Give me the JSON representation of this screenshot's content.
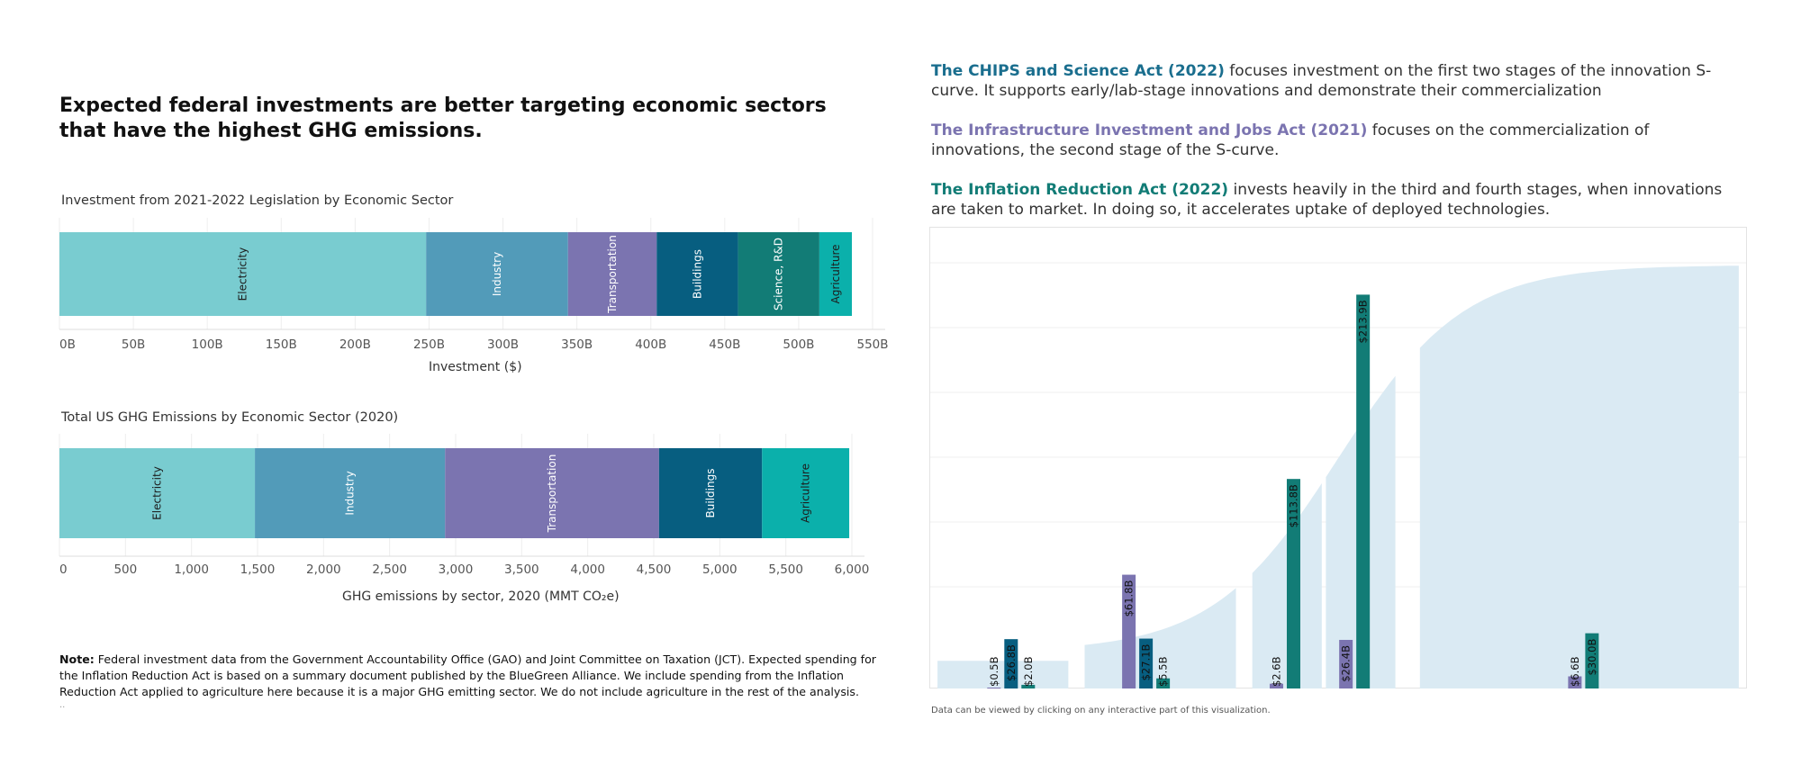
{
  "headline": "Expected federal investments are better targeting economic sectors that have the highest GHG emissions.",
  "investment_chart": {
    "title": "Investment from 2021-2022 Legislation by Economic Sector",
    "xlabel": "Investment ($)"
  },
  "emissions_chart": {
    "title": "Total US GHG Emissions by Economic Sector (2020)",
    "xlabel": "GHG emissions by sector, 2020 (MMT CO₂e)"
  },
  "note": {
    "label": "Note:",
    "text": " Federal investment data from the Government Accountability Office (GAO) and Joint Committee on Taxation (JCT). Expected spending for the Inflation Reduction Act is based on a summary document published by the BlueGreen Alliance. We include spending from the Inflation Reduction Act applied to agriculture here because it is a major GHG emitting sector. We do not include agriculture in the rest of the analysis.",
    "trailing": ".."
  },
  "acts": [
    {
      "name": "The CHIPS and Science Act (2022)",
      "color": "#1a6e8e",
      "text": " focuses investment on the first two stages of the innovation S-curve. It supports early/lab-stage innovations and demonstrate their commercialization"
    },
    {
      "name": "The Infrastructure Investment and Jobs Act (2021)",
      "color": "#7b74b0",
      "text": " focuses on the commercialization of innovations, the second stage of the S-curve."
    },
    {
      "name": "The Inflation Reduction Act (2022)",
      "color": "#127c76",
      "text": " invests heavily in the third and fourth stages, when innovations are taken to market. In doing so, it accelerates uptake of deployed technologies."
    }
  ],
  "footnote": "Data can be viewed by clicking on any interactive part of this visualization.",
  "colors": {
    "electricity": "#79ccd0",
    "industry": "#529bb9",
    "transportation": "#7b74b0",
    "buildings": "#075e80",
    "science": "#127c76",
    "agriculture": "#0bb0ab",
    "chips": "#075e80",
    "iija": "#7b74b0",
    "ira": "#127c76",
    "scurve": "#daeaf3"
  },
  "chart_data": [
    {
      "type": "bar",
      "orientation": "horizontal-stacked",
      "title": "Investment from 2021-2022 Legislation by Economic Sector",
      "xlabel": "Investment ($)",
      "xlim": [
        0,
        550
      ],
      "ticks": [
        "0B",
        "50B",
        "100B",
        "150B",
        "200B",
        "250B",
        "300B",
        "350B",
        "400B",
        "450B",
        "500B",
        "550B"
      ],
      "tick_values": [
        0,
        50,
        100,
        150,
        200,
        250,
        300,
        350,
        400,
        450,
        500,
        550
      ],
      "unit": "B",
      "segments": [
        {
          "name": "Electricity",
          "value": 248,
          "color_key": "electricity",
          "label_color": "#1d1d1d"
        },
        {
          "name": "Industry",
          "value": 96,
          "color_key": "industry",
          "label_color": "#ffffff"
        },
        {
          "name": "Transportation",
          "value": 60,
          "color_key": "transportation",
          "label_color": "#ffffff"
        },
        {
          "name": "Buildings",
          "value": 55,
          "color_key": "buildings",
          "label_color": "#ffffff"
        },
        {
          "name": "Science, R&D",
          "value": 55,
          "color_key": "science",
          "label_color": "#ffffff"
        },
        {
          "name": "Agriculture",
          "value": 22,
          "color_key": "agriculture",
          "label_color": "#1d1d1d"
        }
      ],
      "grid": true
    },
    {
      "type": "bar",
      "orientation": "horizontal-stacked",
      "title": "Total US GHG Emissions by Economic Sector (2020)",
      "xlabel": "GHG emissions by sector, 2020 (MMT CO₂e)",
      "xlim": [
        0,
        6000
      ],
      "ticks": [
        "0",
        "500",
        "1,000",
        "1,500",
        "2,000",
        "2,500",
        "3,000",
        "3,500",
        "4,000",
        "4,500",
        "5,000",
        "5,500",
        "6,000"
      ],
      "tick_values": [
        0,
        500,
        1000,
        1500,
        2000,
        2500,
        3000,
        3500,
        4000,
        4500,
        5000,
        5500,
        6000
      ],
      "segments": [
        {
          "name": "Electricity",
          "value": 1480,
          "color_key": "electricity",
          "label_color": "#1d1d1d"
        },
        {
          "name": "Industry",
          "value": 1440,
          "color_key": "industry",
          "label_color": "#ffffff"
        },
        {
          "name": "Transportation",
          "value": 1620,
          "color_key": "transportation",
          "label_color": "#ffffff"
        },
        {
          "name": "Buildings",
          "value": 780,
          "color_key": "buildings",
          "label_color": "#ffffff"
        },
        {
          "name": "Agriculture",
          "value": 660,
          "color_key": "agriculture",
          "label_color": "#1d1d1d"
        }
      ],
      "grid": true
    },
    {
      "type": "bar",
      "orientation": "vertical",
      "ylim": [
        0,
        240
      ],
      "scurve_stages": [
        {
          "x0": 0.01,
          "x1": 0.17,
          "top": [
            15,
            15
          ]
        },
        {
          "x0": 0.19,
          "x1": 0.375,
          "top": "curve"
        },
        {
          "x0": 0.395,
          "x1": 0.48,
          "top": "curve"
        },
        {
          "x0": 0.485,
          "x1": 0.57,
          "top": "curve"
        },
        {
          "x0": 0.6,
          "x1": 0.99,
          "top": "curve"
        }
      ],
      "groups": [
        {
          "stage": 1,
          "bars": [
            {
              "label": "$0.5B",
              "value": 0.5,
              "color_key": "iija"
            },
            {
              "label": "$26.8B",
              "value": 26.8,
              "color_key": "chips"
            },
            {
              "label": "$2.0B",
              "value": 2.0,
              "color_key": "ira"
            }
          ]
        },
        {
          "stage": 2,
          "bars": [
            {
              "label": "$61.8B",
              "value": 61.8,
              "color_key": "iija"
            },
            {
              "label": "$27.1B",
              "value": 27.1,
              "color_key": "chips"
            },
            {
              "label": "$5.5B",
              "value": 5.5,
              "color_key": "ira"
            }
          ]
        },
        {
          "stage": 3,
          "bars": [
            {
              "label": "$2.6B",
              "value": 2.6,
              "color_key": "iija"
            },
            {
              "label": "$113.8B",
              "value": 113.8,
              "color_key": "ira"
            }
          ]
        },
        {
          "stage": 3.5,
          "bars": [
            {
              "label": "$26.4B",
              "value": 26.4,
              "color_key": "iija"
            },
            {
              "label": "$213.9B",
              "value": 213.9,
              "color_key": "ira"
            }
          ]
        },
        {
          "stage": 4,
          "bars": [
            {
              "label": "$6.6B",
              "value": 6.6,
              "color_key": "iija"
            },
            {
              "label": "$30.0B",
              "value": 30.0,
              "color_key": "ira"
            }
          ]
        }
      ],
      "grid": true
    }
  ]
}
